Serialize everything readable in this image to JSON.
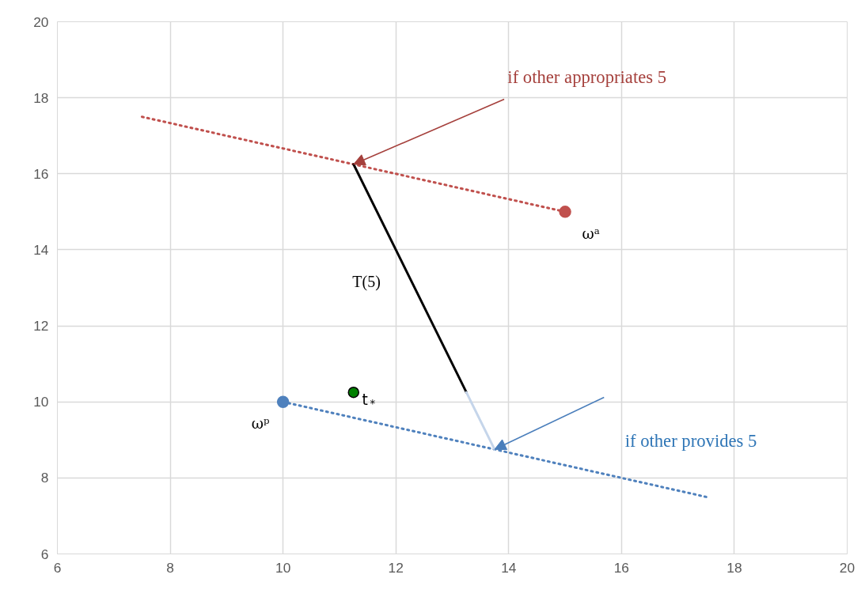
{
  "chart_data": {
    "type": "line",
    "xlim": [
      6,
      20
    ],
    "ylim": [
      6,
      20
    ],
    "xticks": [
      6,
      8,
      10,
      12,
      14,
      16,
      18,
      20
    ],
    "yticks": [
      6,
      8,
      10,
      12,
      14,
      16,
      18,
      20
    ],
    "grid": true,
    "series": [
      {
        "color": "#c0504d",
        "line_style": "dotted",
        "marker": "none",
        "x": [
          7.5,
          15
        ],
        "values": [
          17.5,
          15
        ]
      },
      {
        "color": "#4f81bd",
        "line_style": "dotted",
        "marker": "none",
        "x": [
          10,
          17.5
        ],
        "values": [
          10,
          7.5
        ]
      },
      {
        "color": "#000000",
        "line_style": "solid",
        "marker": "none",
        "x": [
          11.25,
          13.25
        ],
        "values": [
          16.25,
          10.25
        ]
      },
      {
        "color": "#c5d5ea",
        "line_style": "solid",
        "marker": "none",
        "x": [
          13.25,
          13.75
        ],
        "values": [
          10.25,
          8.75
        ]
      },
      {
        "type": "scatter",
        "color": "#c0504d",
        "marker": "circle",
        "x": [
          15
        ],
        "values": [
          15
        ]
      },
      {
        "type": "scatter",
        "color": "#4f81bd",
        "marker": "circle",
        "x": [
          10
        ],
        "values": [
          10
        ]
      },
      {
        "type": "scatter",
        "color": "#008000",
        "marker": "circle",
        "x": [
          11.25
        ],
        "values": [
          10.25
        ]
      }
    ],
    "annotations": [
      {
        "text": "if other appropriates  5",
        "x": 11.25,
        "y": 16.25
      },
      "T(5)",
      "ωᵃ",
      "ωᵖ",
      "t$_{*}$",
      "if other provides 5"
    ]
  }
}
